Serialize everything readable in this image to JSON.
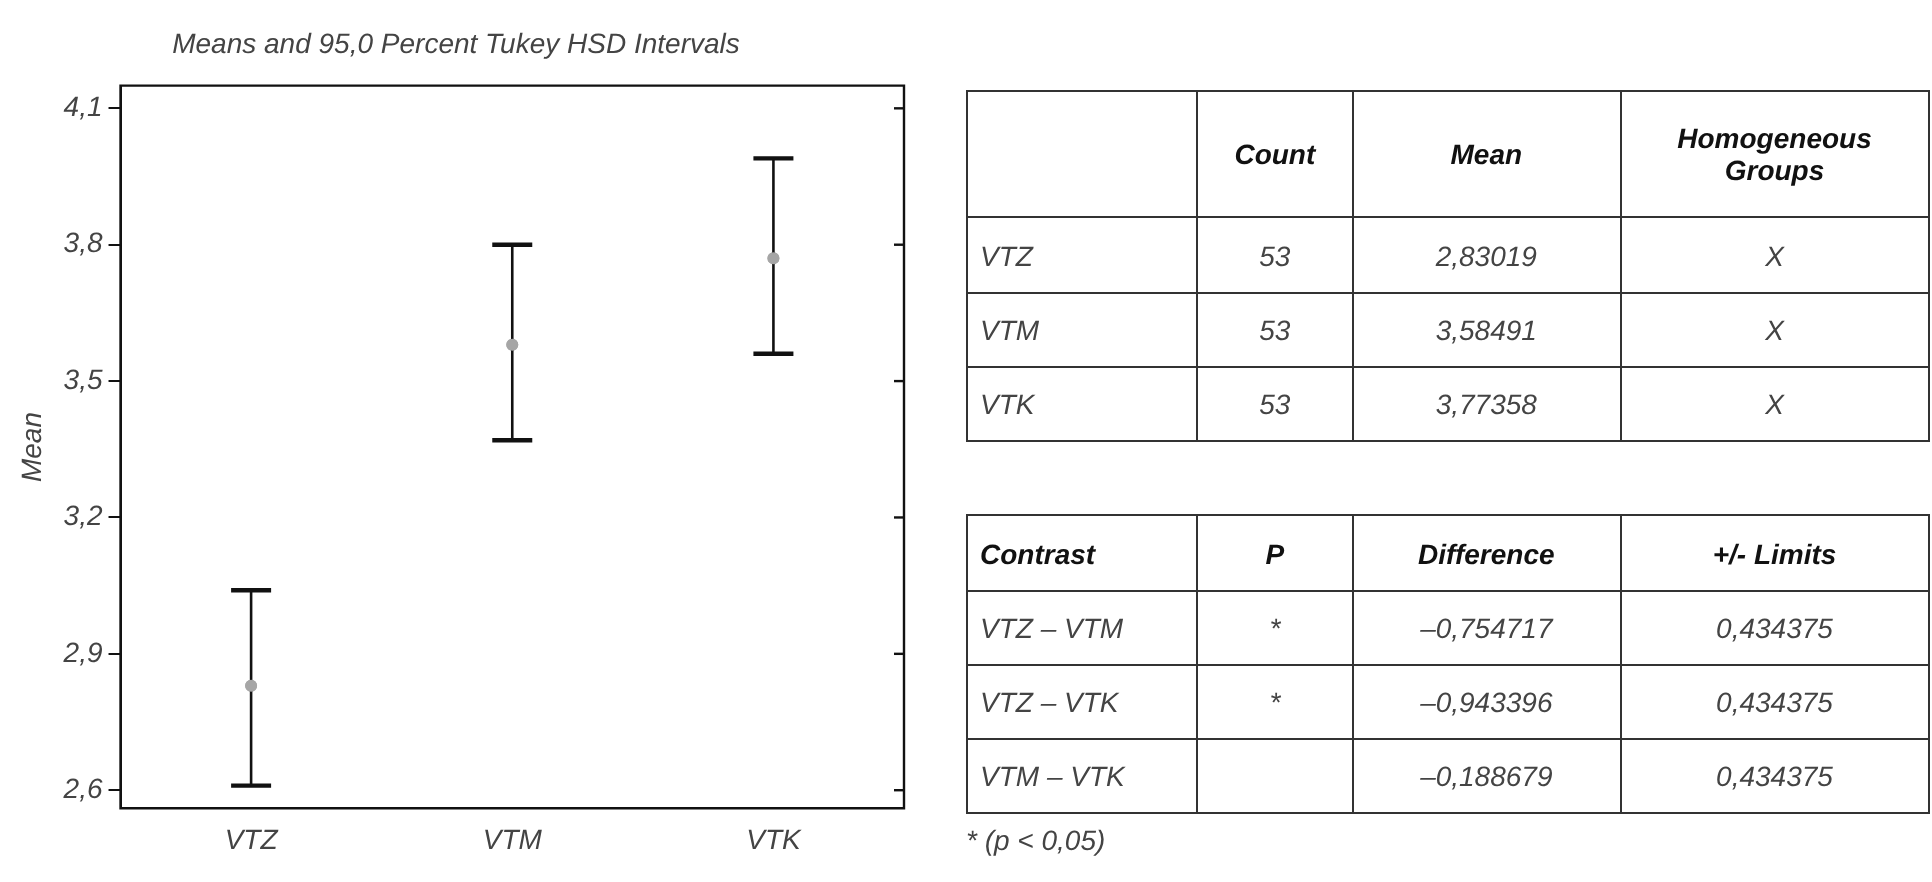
{
  "chart_data": [
    {
      "type": "scatter",
      "title": "Means and 95,0 Percent Tukey HSD Intervals",
      "ylabel": "Mean",
      "categories": [
        "VTZ",
        "VTM",
        "VTK"
      ],
      "series": [
        {
          "color": "#a6a6a6",
          "values": [
            2.83,
            3.58,
            3.77
          ],
          "errors": [
            [
              2.61,
              3.04
            ],
            [
              3.37,
              3.8
            ],
            [
              3.56,
              3.99
            ]
          ]
        }
      ],
      "ylim": [
        2.56,
        4.15
      ],
      "yticks": [
        {
          "value": 2.6,
          "label": "2,6"
        },
        {
          "value": 2.9,
          "label": "2,9"
        },
        {
          "value": 3.2,
          "label": "3,2"
        },
        {
          "value": 3.5,
          "label": "3,5"
        },
        {
          "value": 3.8,
          "label": "3,8"
        },
        {
          "value": 4.1,
          "label": "4,1"
        }
      ],
      "grid": false,
      "legend": false,
      "marker": "circle"
    },
    {
      "type": "other",
      "annotations": [
        "Count",
        "Mean",
        "Homogeneous Groups",
        "VTZ",
        "53",
        "2,83019",
        "X",
        "VTM",
        "53",
        "3,58491",
        "X",
        "VTK",
        "53",
        "3,77358",
        "X",
        "Contrast",
        "P",
        "Difference",
        "+/- Limits",
        "VTZ – VTM",
        "*",
        "–0,754717",
        "0,434375",
        "VTZ – VTK",
        "*",
        "–0,943396",
        "0,434375",
        "VTM – VTK",
        "–0,188679",
        "0,434375",
        "* (p < 0,05)"
      ]
    }
  ]
}
